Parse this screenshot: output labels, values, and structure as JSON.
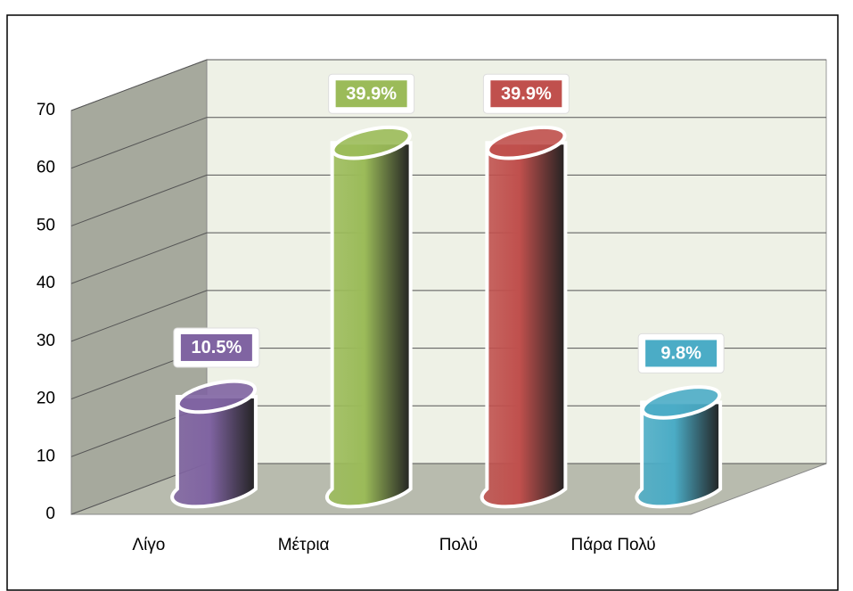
{
  "chart_data": {
    "type": "bar3d",
    "categories": [
      "Λίγο",
      "Μέτρια",
      "Πολύ",
      "Πάρα Πολύ"
    ],
    "values": [
      16,
      60,
      60,
      15
    ],
    "value_labels": [
      "10.5%",
      "39.9%",
      "39.9%",
      "9.8%"
    ],
    "colors": [
      "#8064a2",
      "#9bbb59",
      "#c0504d",
      "#4bacc6"
    ],
    "ylim": [
      0,
      70
    ],
    "yticks": [
      0,
      10,
      20,
      30,
      40,
      50,
      60,
      70
    ],
    "grid": true
  }
}
